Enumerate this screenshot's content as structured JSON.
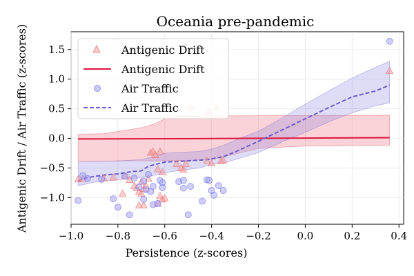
{
  "chart_data": {
    "type": "scatter",
    "title": "Oceania pre-pandemic",
    "xlabel": "Persistence (z-scores)",
    "ylabel": "Antigenic Drift / Air Traffic (z-scores)",
    "xlim": [
      -1.0,
      0.42
    ],
    "ylim": [
      -1.45,
      1.8
    ],
    "xticks": [
      -1.0,
      -0.8,
      -0.6,
      -0.4,
      -0.2,
      0.0,
      0.2,
      0.4
    ],
    "xtick_labels": [
      "−1.0",
      "−0.8",
      "−0.6",
      "−0.4",
      "−0.2",
      "0.0",
      "0.2",
      "0.4"
    ],
    "yticks": [
      -1.0,
      -0.5,
      0.0,
      0.5,
      1.0,
      1.5
    ],
    "ytick_labels": [
      "−1.0",
      "−0.5",
      "0.0",
      "0.5",
      "1.0",
      "1.5"
    ],
    "grid": true,
    "legend_position": "upper left",
    "legend": [
      {
        "label": "Antigenic Drift",
        "kind": "triangle-marker"
      },
      {
        "label": "Antigenic Drift",
        "kind": "solid-line"
      },
      {
        "label": "Air Traffic",
        "kind": "circle-marker"
      },
      {
        "label": "Air Traffic",
        "kind": "dashed-line"
      }
    ],
    "series": [
      {
        "name": "Antigenic Drift",
        "kind": "scatter",
        "marker": "triangle",
        "color": "#f08080",
        "points": [
          [
            -0.97,
            -0.69
          ],
          [
            -0.95,
            -0.68
          ],
          [
            -0.86,
            -0.67
          ],
          [
            -0.82,
            -0.66
          ],
          [
            -0.77,
            -0.64
          ],
          [
            -0.78,
            -0.93
          ],
          [
            -0.75,
            -0.7
          ],
          [
            -0.73,
            -0.8
          ],
          [
            -0.72,
            -0.84
          ],
          [
            -0.71,
            -0.9
          ],
          [
            -0.7,
            -0.93
          ],
          [
            -0.71,
            -1.13
          ],
          [
            -0.69,
            -1.13
          ],
          [
            -0.7,
            -0.73
          ],
          [
            -0.69,
            -0.85
          ],
          [
            -0.68,
            -0.8
          ],
          [
            -0.67,
            -0.68
          ],
          [
            -0.66,
            -0.24
          ],
          [
            -0.65,
            -0.22
          ],
          [
            -0.64,
            -0.28
          ],
          [
            -0.62,
            -0.22
          ],
          [
            -0.63,
            -0.52
          ],
          [
            -0.61,
            -0.57
          ],
          [
            -0.62,
            -0.97
          ],
          [
            -0.61,
            -1.03
          ],
          [
            -0.63,
            -1.1
          ],
          [
            -0.6,
            -1.01
          ],
          [
            -0.55,
            -0.43
          ],
          [
            -0.53,
            -0.5
          ],
          [
            -0.52,
            -0.53
          ],
          [
            -0.51,
            -0.43
          ],
          [
            -0.49,
            0.52
          ],
          [
            -0.42,
            -0.38
          ],
          [
            -0.41,
            0.46
          ],
          [
            -0.4,
            -0.42
          ],
          [
            -0.38,
            0.52
          ],
          [
            -0.36,
            -0.38
          ],
          [
            -0.35,
            -0.37
          ],
          [
            0.36,
            1.14
          ]
        ]
      },
      {
        "name": "Antigenic Drift",
        "kind": "line",
        "color": "#dc143c",
        "x": [
          -0.97,
          -0.5,
          0.0,
          0.36
        ],
        "y": [
          -0.01,
          -0.005,
          0.005,
          0.012
        ],
        "band_upper": [
          0.07,
          0.38,
          0.39,
          0.39
        ],
        "band_lower": [
          -0.39,
          -0.38,
          -0.15,
          -0.12
        ],
        "band_x": [
          -0.97,
          -0.62,
          -0.2,
          0.36
        ],
        "band_upper_detail": [
          [
            -0.97,
            0.07
          ],
          [
            -0.86,
            0.08
          ],
          [
            -0.7,
            0.18
          ],
          [
            -0.64,
            0.25
          ],
          [
            -0.58,
            0.37
          ],
          [
            -0.4,
            0.38
          ],
          [
            0.36,
            0.39
          ]
        ],
        "band_lower_detail": [
          [
            -0.97,
            -0.39
          ],
          [
            -0.8,
            -0.38
          ],
          [
            -0.6,
            -0.38
          ],
          [
            -0.4,
            -0.36
          ],
          [
            -0.2,
            -0.17
          ],
          [
            0.0,
            -0.13
          ],
          [
            0.36,
            -0.12
          ]
        ]
      },
      {
        "name": "Air Traffic",
        "kind": "scatter",
        "marker": "circle",
        "color": "#6a6aee",
        "points": [
          [
            -0.97,
            -1.05
          ],
          [
            -0.95,
            -0.63
          ],
          [
            -0.93,
            -0.68
          ],
          [
            -0.87,
            -0.69
          ],
          [
            -0.82,
            -1.02
          ],
          [
            -0.8,
            -1.16
          ],
          [
            -0.77,
            -0.64
          ],
          [
            -0.75,
            -1.29
          ],
          [
            -0.73,
            -0.67
          ],
          [
            -0.71,
            -0.82
          ],
          [
            -0.69,
            -0.72
          ],
          [
            -0.69,
            -1.03
          ],
          [
            -0.68,
            -0.87
          ],
          [
            -0.67,
            -0.61
          ],
          [
            -0.66,
            -0.9
          ],
          [
            -0.65,
            -0.81
          ],
          [
            -0.65,
            -1.12
          ],
          [
            -0.63,
            -1.1
          ],
          [
            -0.62,
            -0.71
          ],
          [
            -0.61,
            -0.75
          ],
          [
            -0.61,
            -0.83
          ],
          [
            -0.54,
            -0.73
          ],
          [
            -0.52,
            -0.71
          ],
          [
            -0.52,
            -0.84
          ],
          [
            -0.5,
            -1.29
          ],
          [
            -0.49,
            -0.81
          ],
          [
            -0.44,
            -1.06
          ],
          [
            -0.42,
            -0.7
          ],
          [
            -0.41,
            -0.71
          ],
          [
            -0.4,
            -0.88
          ],
          [
            -0.39,
            -0.96
          ],
          [
            -0.37,
            -0.8
          ],
          [
            -0.35,
            -0.88
          ],
          [
            0.36,
            1.64
          ]
        ]
      },
      {
        "name": "Air Traffic",
        "kind": "line",
        "dashed": true,
        "color": "#6a5acd",
        "points": [
          [
            -0.97,
            -0.72
          ],
          [
            -0.93,
            -0.66
          ],
          [
            -0.86,
            -0.62
          ],
          [
            -0.8,
            -0.6
          ],
          [
            -0.74,
            -0.56
          ],
          [
            -0.7,
            -0.55
          ],
          [
            -0.67,
            -0.47
          ],
          [
            -0.64,
            -0.44
          ],
          [
            -0.6,
            -0.4
          ],
          [
            -0.5,
            -0.38
          ],
          [
            -0.42,
            -0.36
          ],
          [
            -0.35,
            -0.31
          ],
          [
            -0.3,
            -0.23
          ],
          [
            -0.25,
            -0.14
          ],
          [
            -0.2,
            -0.05
          ],
          [
            -0.1,
            0.14
          ],
          [
            0.0,
            0.33
          ],
          [
            0.1,
            0.52
          ],
          [
            0.2,
            0.7
          ],
          [
            0.3,
            0.8
          ],
          [
            0.36,
            0.9
          ]
        ],
        "band_upper_detail": [
          [
            -0.97,
            -0.4
          ],
          [
            -0.9,
            -0.39
          ],
          [
            -0.8,
            -0.38
          ],
          [
            -0.7,
            -0.36
          ],
          [
            -0.64,
            -0.3
          ],
          [
            -0.6,
            -0.25
          ],
          [
            -0.55,
            -0.24
          ],
          [
            -0.45,
            -0.22
          ],
          [
            -0.4,
            -0.18
          ],
          [
            -0.35,
            -0.12
          ],
          [
            -0.28,
            0.0
          ],
          [
            -0.2,
            0.12
          ],
          [
            -0.1,
            0.34
          ],
          [
            0.0,
            0.58
          ],
          [
            0.1,
            0.8
          ],
          [
            0.2,
            1.02
          ],
          [
            0.3,
            1.2
          ],
          [
            0.36,
            1.3
          ]
        ],
        "band_lower_detail": [
          [
            -0.97,
            -0.8
          ],
          [
            -0.9,
            -0.74
          ],
          [
            -0.8,
            -0.7
          ],
          [
            -0.7,
            -0.66
          ],
          [
            -0.64,
            -0.62
          ],
          [
            -0.6,
            -0.58
          ],
          [
            -0.55,
            -0.55
          ],
          [
            -0.45,
            -0.5
          ],
          [
            -0.4,
            -0.44
          ],
          [
            -0.35,
            -0.42
          ],
          [
            -0.3,
            -0.36
          ],
          [
            -0.2,
            -0.24
          ],
          [
            -0.1,
            -0.06
          ],
          [
            0.0,
            0.1
          ],
          [
            0.1,
            0.28
          ],
          [
            0.2,
            0.43
          ],
          [
            0.3,
            0.55
          ],
          [
            0.36,
            0.6
          ]
        ]
      }
    ]
  }
}
